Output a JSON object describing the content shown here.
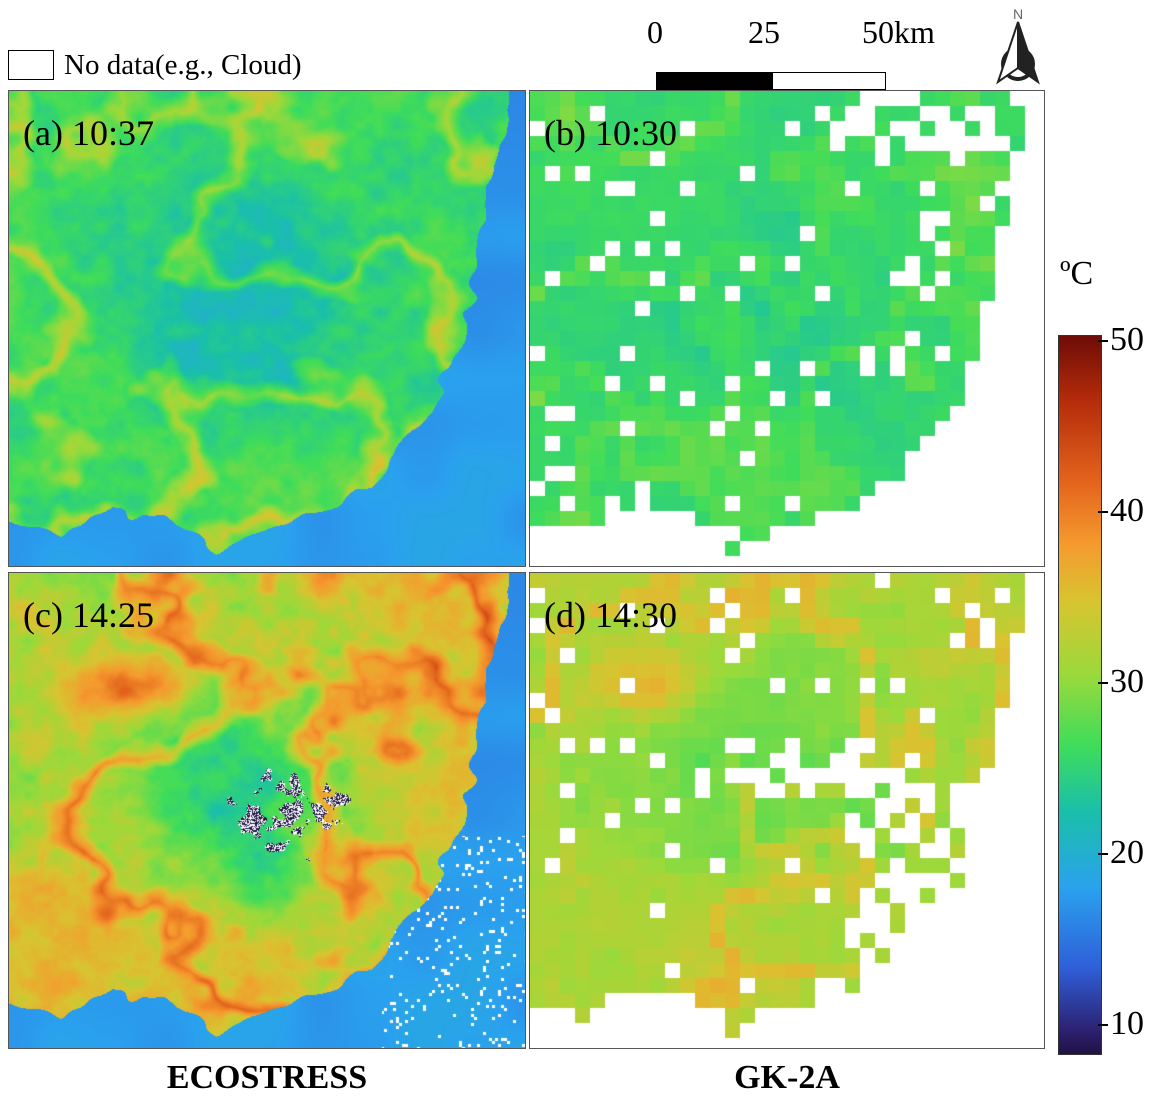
{
  "legend": {
    "no_data_label": "No data(e.g., Cloud)"
  },
  "scale_bar": {
    "labels": [
      "0",
      "25",
      "50km"
    ]
  },
  "north_arrow": {
    "letter": "N",
    "icon": "north-arrow-icon"
  },
  "panels": [
    {
      "label": "(a) 10:37",
      "sensor": "ECOSTRESS",
      "time": "10:37"
    },
    {
      "label": "(b) 10:30",
      "sensor": "GK-2A",
      "time": "10:30"
    },
    {
      "label": "(c) 14:25",
      "sensor": "ECOSTRESS",
      "time": "14:25"
    },
    {
      "label": "(d) 14:30",
      "sensor": "GK-2A",
      "time": "14:30"
    }
  ],
  "column_titles": {
    "left": "ECOSTRESS",
    "right": "GK-2A"
  },
  "colorbar": {
    "unit": "ºC",
    "min": 9,
    "max": 51,
    "ticks": [
      "50",
      "40",
      "30",
      "20",
      "10"
    ],
    "colors": [
      "#6e0c07",
      "#e2621c",
      "#d8c430",
      "#3fdc5a",
      "#2aa1ee",
      "#211145"
    ]
  }
}
